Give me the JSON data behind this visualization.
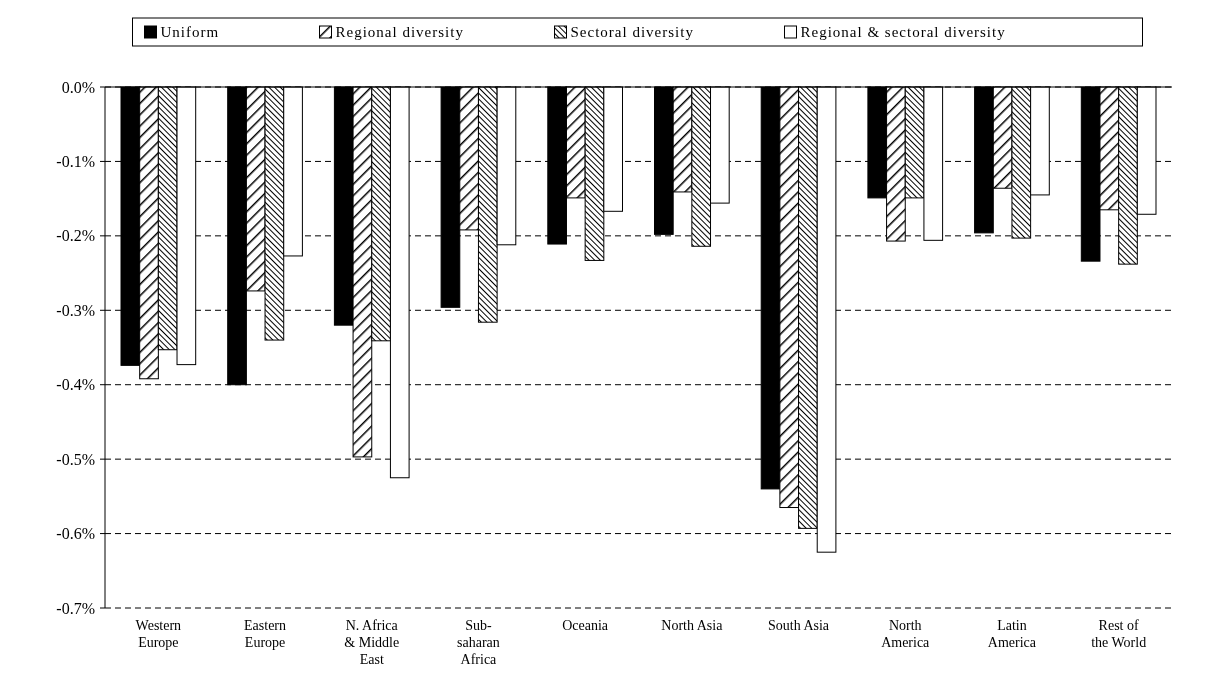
{
  "chart_data": {
    "type": "bar",
    "categories": [
      "Western Europe",
      "Eastern Europe",
      "N. Africa & Middle East",
      "Sub-saharan Africa",
      "Oceania",
      "North Asia",
      "South Asia",
      "North America",
      "Latin America",
      "Rest of the World"
    ],
    "series": [
      {
        "name": "Uniform",
        "color": "#000000",
        "values": [
          -0.374,
          -0.4,
          -0.32,
          -0.296,
          -0.211,
          -0.198,
          -0.54,
          -0.149,
          -0.196,
          -0.234
        ]
      },
      {
        "name": "Regional diversity",
        "color": "#000000",
        "values": [
          -0.392,
          -0.274,
          -0.497,
          -0.192,
          -0.149,
          -0.141,
          -0.565,
          -0.207,
          -0.136,
          -0.165
        ]
      },
      {
        "name": "Sectoral diversity",
        "color": "#000000",
        "values": [
          -0.353,
          -0.34,
          -0.341,
          -0.316,
          -0.233,
          -0.214,
          -0.593,
          -0.149,
          -0.203,
          -0.238
        ]
      },
      {
        "name": "Regional & sectoral diversity",
        "color": "#ffffff",
        "values": [
          -0.373,
          -0.227,
          -0.525,
          -0.212,
          -0.167,
          -0.156,
          -0.625,
          -0.206,
          -0.145,
          -0.171
        ]
      }
    ],
    "ylim": [
      -0.7,
      0
    ],
    "yticks": [
      {
        "value": 0,
        "label": "0.0%"
      },
      {
        "value": -0.1,
        "label": "-0.1%"
      },
      {
        "value": -0.2,
        "label": "-0.2%"
      },
      {
        "value": -0.3,
        "label": "-0.3%"
      },
      {
        "value": -0.4,
        "label": "-0.4%"
      },
      {
        "value": -0.5,
        "label": "-0.5%"
      },
      {
        "value": -0.6,
        "label": "-0.6%"
      },
      {
        "value": -0.7,
        "label": "-0.7%"
      }
    ],
    "grid": "y",
    "legend": "top"
  }
}
